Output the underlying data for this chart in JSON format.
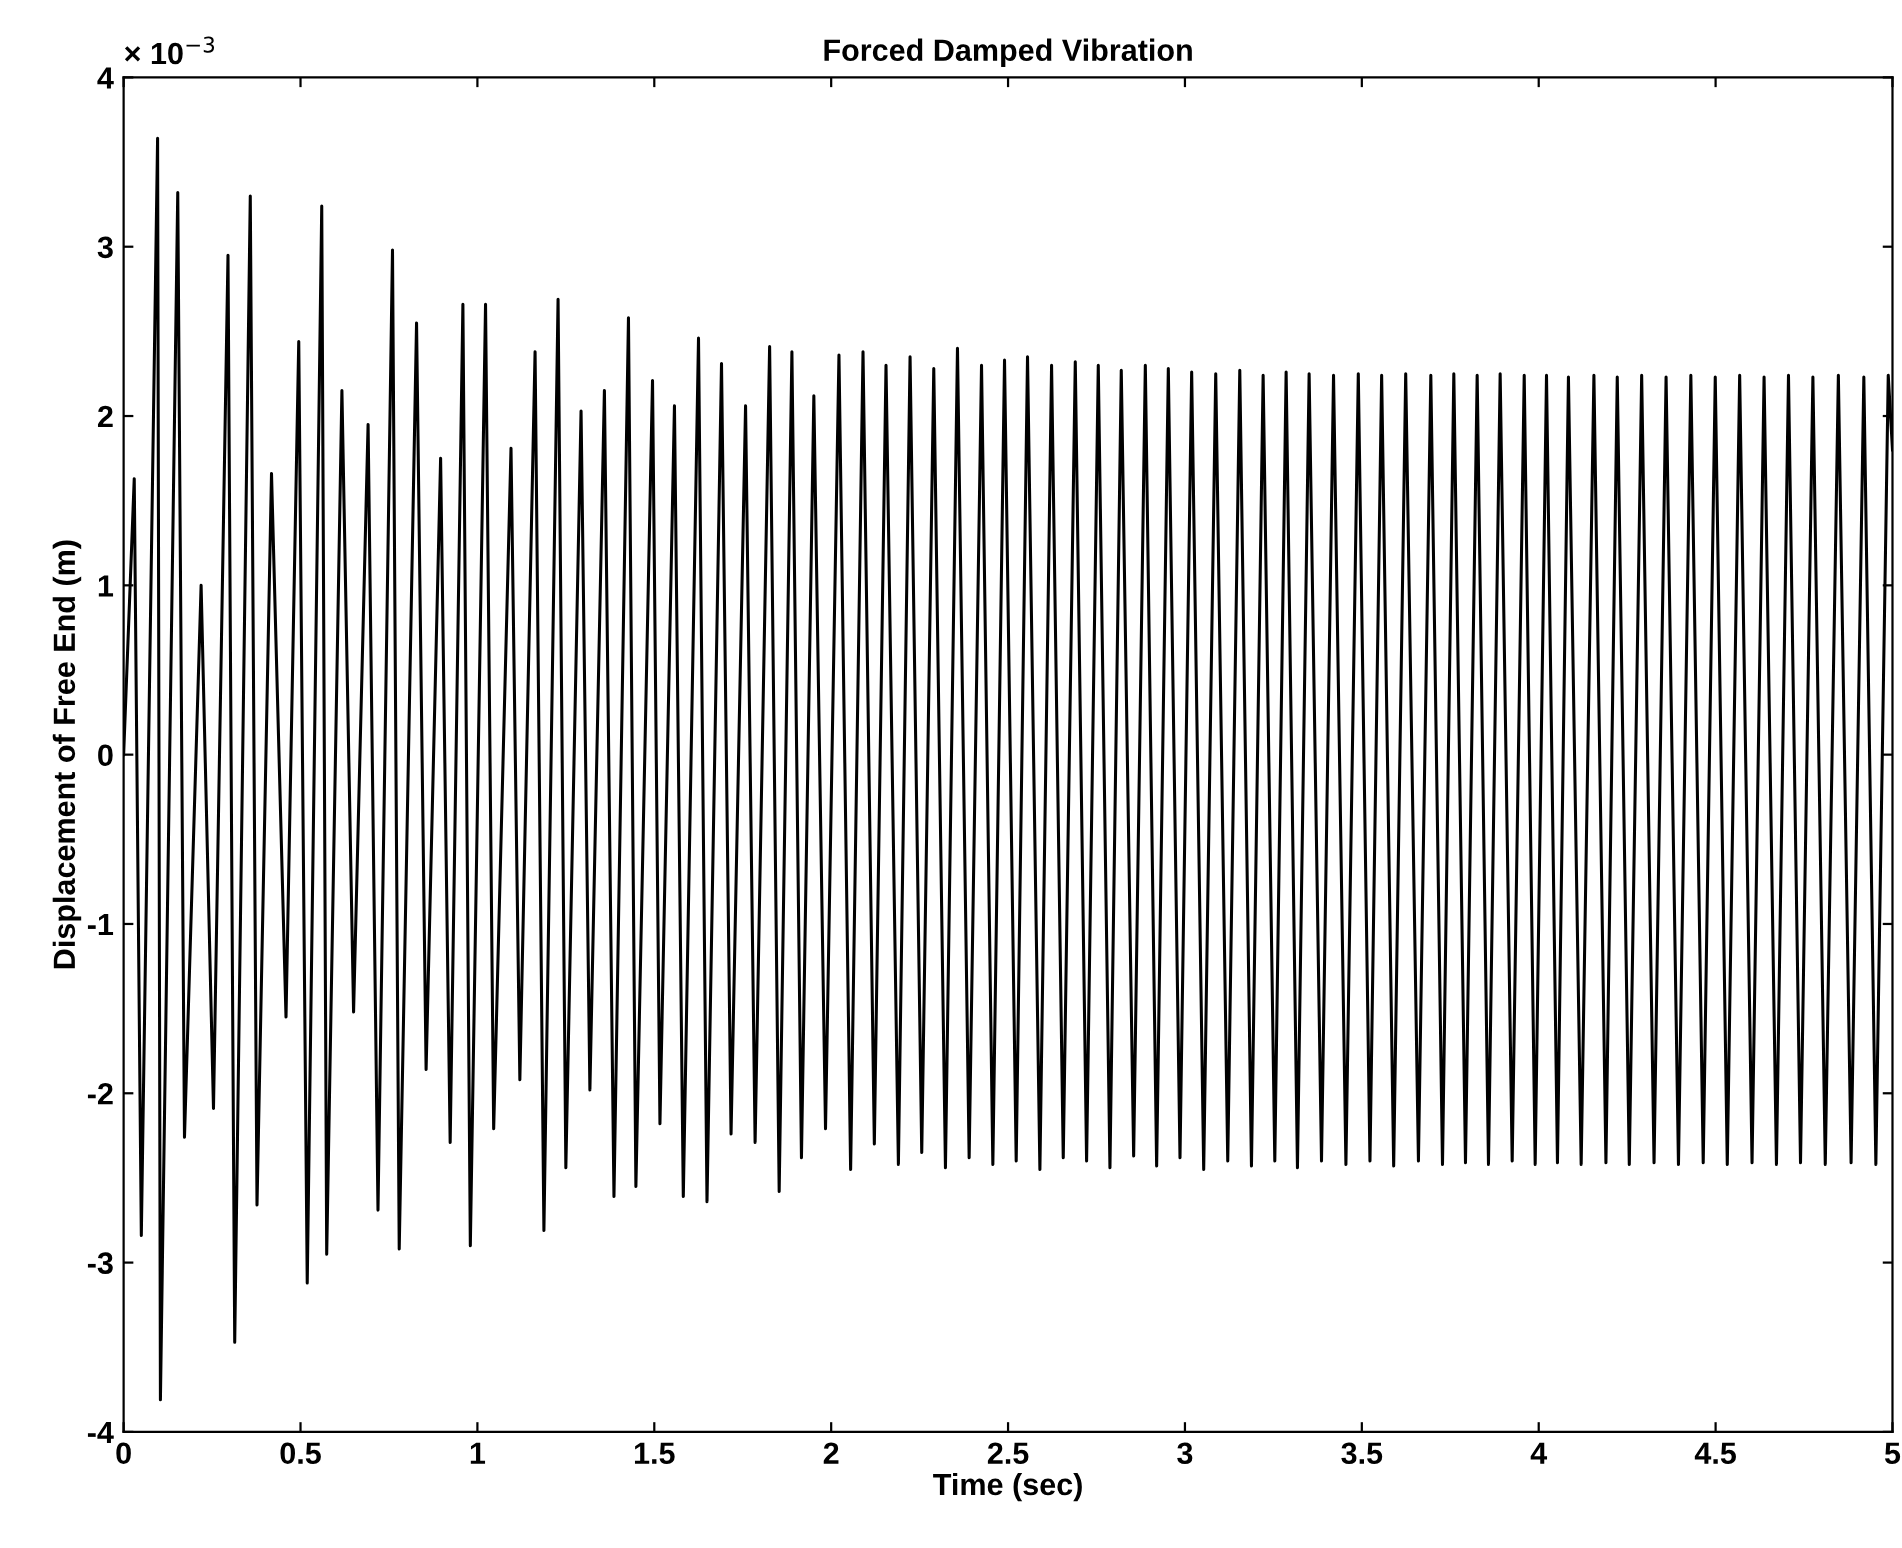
{
  "chart_data": {
    "type": "line",
    "title": "Forced Damped Vibration",
    "xlabel": "Time (sec)",
    "ylabel": "Displacement of Free End (m)",
    "annotations": [
      "× 10$^{−3}$"
    ],
    "xlim": [
      0,
      5
    ],
    "xticks": [
      0,
      0.5,
      1,
      1.5,
      2,
      2.5,
      3,
      3.5,
      4,
      4.5,
      5
    ],
    "ylim": [
      -4,
      4
    ],
    "yticks": [
      -4,
      -3,
      -2,
      -1,
      0,
      1,
      2,
      3,
      4
    ],
    "grid": false,
    "marker": "none",
    "line_style": "solid",
    "series": [
      {
        "color": "#000000",
        "x": [
          0,
          0.03,
          0.05,
          0.096,
          0.104,
          0.153,
          0.172,
          0.219,
          0.254,
          0.295,
          0.314,
          0.358,
          0.377,
          0.418,
          0.459,
          0.495,
          0.519,
          0.56,
          0.574,
          0.617,
          0.65,
          0.691,
          0.719,
          0.76,
          0.779,
          0.828,
          0.855,
          0.896,
          0.923,
          0.959,
          0.98,
          1.023,
          1.046,
          1.095,
          1.12,
          1.163,
          1.188,
          1.228,
          1.25,
          1.293,
          1.318,
          1.359,
          1.386,
          1.427,
          1.448,
          1.495,
          1.516,
          1.557,
          1.582,
          1.625,
          1.649,
          1.69,
          1.717,
          1.758,
          1.785,
          1.826,
          1.853,
          1.889,
          1.916,
          1.951,
          1.984,
          2.022,
          2.055,
          2.09,
          2.122,
          2.155,
          2.19,
          2.223,
          2.256,
          2.29,
          2.323,
          2.357,
          2.39,
          2.425,
          2.457,
          2.49,
          2.523,
          2.555,
          2.59,
          2.623,
          2.656,
          2.69,
          2.722,
          2.755,
          2.788,
          2.82,
          2.855,
          2.888,
          2.92,
          2.953,
          2.986,
          3.019,
          3.053,
          3.087,
          3.121,
          3.155,
          3.188,
          3.221,
          3.254,
          3.286,
          3.318,
          3.351,
          3.386,
          3.42,
          3.455,
          3.49,
          3.523,
          3.556,
          3.59,
          3.624,
          3.66,
          3.695,
          3.728,
          3.76,
          3.793,
          3.826,
          3.858,
          3.891,
          3.925,
          3.959,
          3.99,
          4.022,
          4.053,
          4.084,
          4.12,
          4.156,
          4.19,
          4.222,
          4.256,
          4.291,
          4.326,
          4.36,
          4.395,
          4.43,
          4.465,
          4.499,
          4.533,
          4.568,
          4.603,
          4.637,
          4.672,
          4.706,
          4.74,
          4.775,
          4.81,
          4.847,
          4.883,
          4.919,
          4.953,
          4.988,
          5.0
        ],
        "values": [
          0,
          1.63,
          -2.84,
          3.64,
          -3.81,
          3.32,
          -2.26,
          1.0,
          -2.09,
          2.95,
          -3.47,
          3.3,
          -2.66,
          1.66,
          -1.55,
          2.44,
          -3.12,
          3.24,
          -2.95,
          2.15,
          -1.52,
          1.95,
          -2.69,
          2.98,
          -2.92,
          2.55,
          -1.86,
          1.75,
          -2.29,
          2.66,
          -2.9,
          2.66,
          -2.21,
          1.81,
          -1.92,
          2.38,
          -2.81,
          2.69,
          -2.44,
          2.03,
          -1.98,
          2.15,
          -2.61,
          2.58,
          -2.55,
          2.21,
          -2.18,
          2.06,
          -2.61,
          2.46,
          -2.64,
          2.31,
          -2.24,
          2.06,
          -2.29,
          2.41,
          -2.58,
          2.38,
          -2.38,
          2.12,
          -2.21,
          2.36,
          -2.45,
          2.38,
          -2.3,
          2.3,
          -2.42,
          2.35,
          -2.35,
          2.28,
          -2.44,
          2.4,
          -2.38,
          2.3,
          -2.42,
          2.33,
          -2.4,
          2.35,
          -2.45,
          2.3,
          -2.38,
          2.32,
          -2.4,
          2.3,
          -2.44,
          2.27,
          -2.37,
          2.3,
          -2.43,
          2.28,
          -2.38,
          2.26,
          -2.45,
          2.25,
          -2.4,
          2.27,
          -2.43,
          2.24,
          -2.4,
          2.26,
          -2.44,
          2.25,
          -2.4,
          2.24,
          -2.42,
          2.25,
          -2.4,
          2.24,
          -2.43,
          2.25,
          -2.4,
          2.24,
          -2.42,
          2.25,
          -2.41,
          2.24,
          -2.42,
          2.25,
          -2.4,
          2.24,
          -2.42,
          2.24,
          -2.41,
          2.23,
          -2.42,
          2.24,
          -2.41,
          2.23,
          -2.42,
          2.24,
          -2.41,
          2.23,
          -2.42,
          2.24,
          -2.41,
          2.23,
          -2.42,
          2.24,
          -2.41,
          2.23,
          -2.42,
          2.24,
          -2.41,
          2.23,
          -2.42,
          2.24,
          -2.41,
          2.23,
          -2.42,
          2.24,
          1.8
        ]
      }
    ]
  }
}
